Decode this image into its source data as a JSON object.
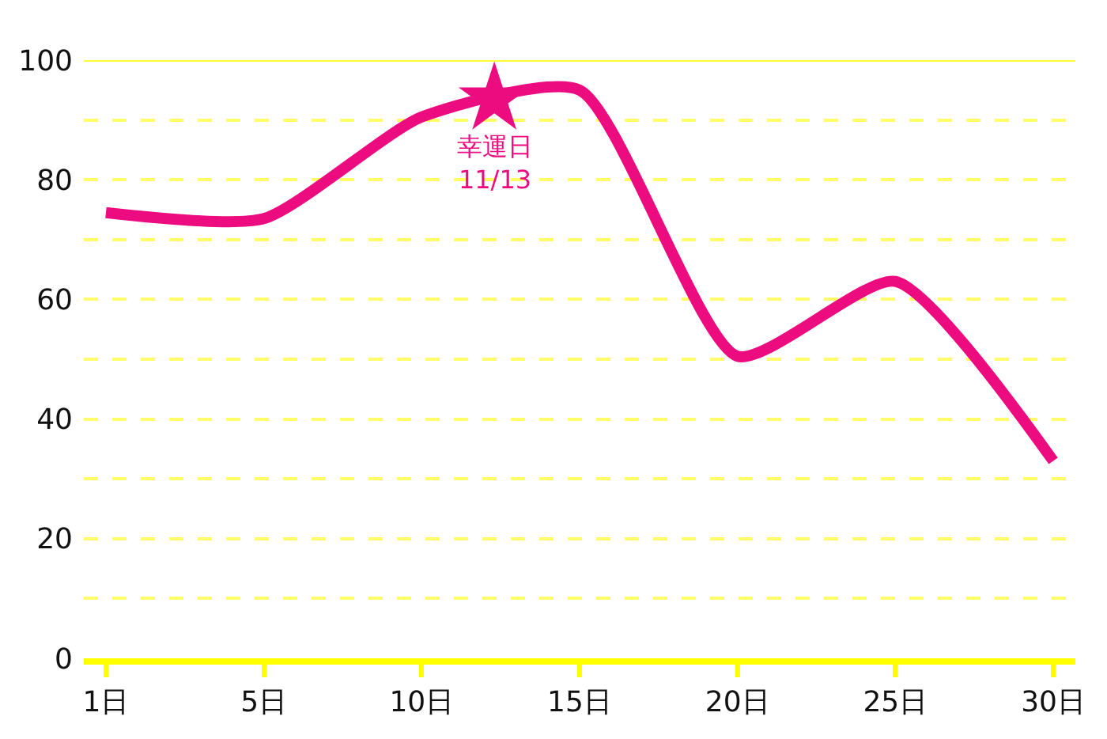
{
  "chart_data": {
    "type": "line",
    "categories": [
      "1日",
      "5日",
      "10日",
      "15日",
      "20日",
      "25日",
      "30日"
    ],
    "series": [
      {
        "color": "#ec0c80",
        "values": [
          74.5,
          73.5,
          90.5,
          95,
          50.5,
          63,
          33
        ]
      }
    ],
    "ylim": [
      0,
      100
    ],
    "yticks": [
      0,
      {
        "value": 10,
        "label": null
      },
      20,
      {
        "value": 30,
        "label": null
      },
      40,
      {
        "value": 50,
        "label": null
      },
      60,
      {
        "value": 70,
        "label": null
      },
      80,
      {
        "value": 90,
        "label": null
      },
      100
    ],
    "grid": "y",
    "line_style": "solid",
    "marker": "none",
    "annotations": [
      {
        "text": "幸運日\n11/13",
        "y": 93.5
      }
    ]
  }
}
